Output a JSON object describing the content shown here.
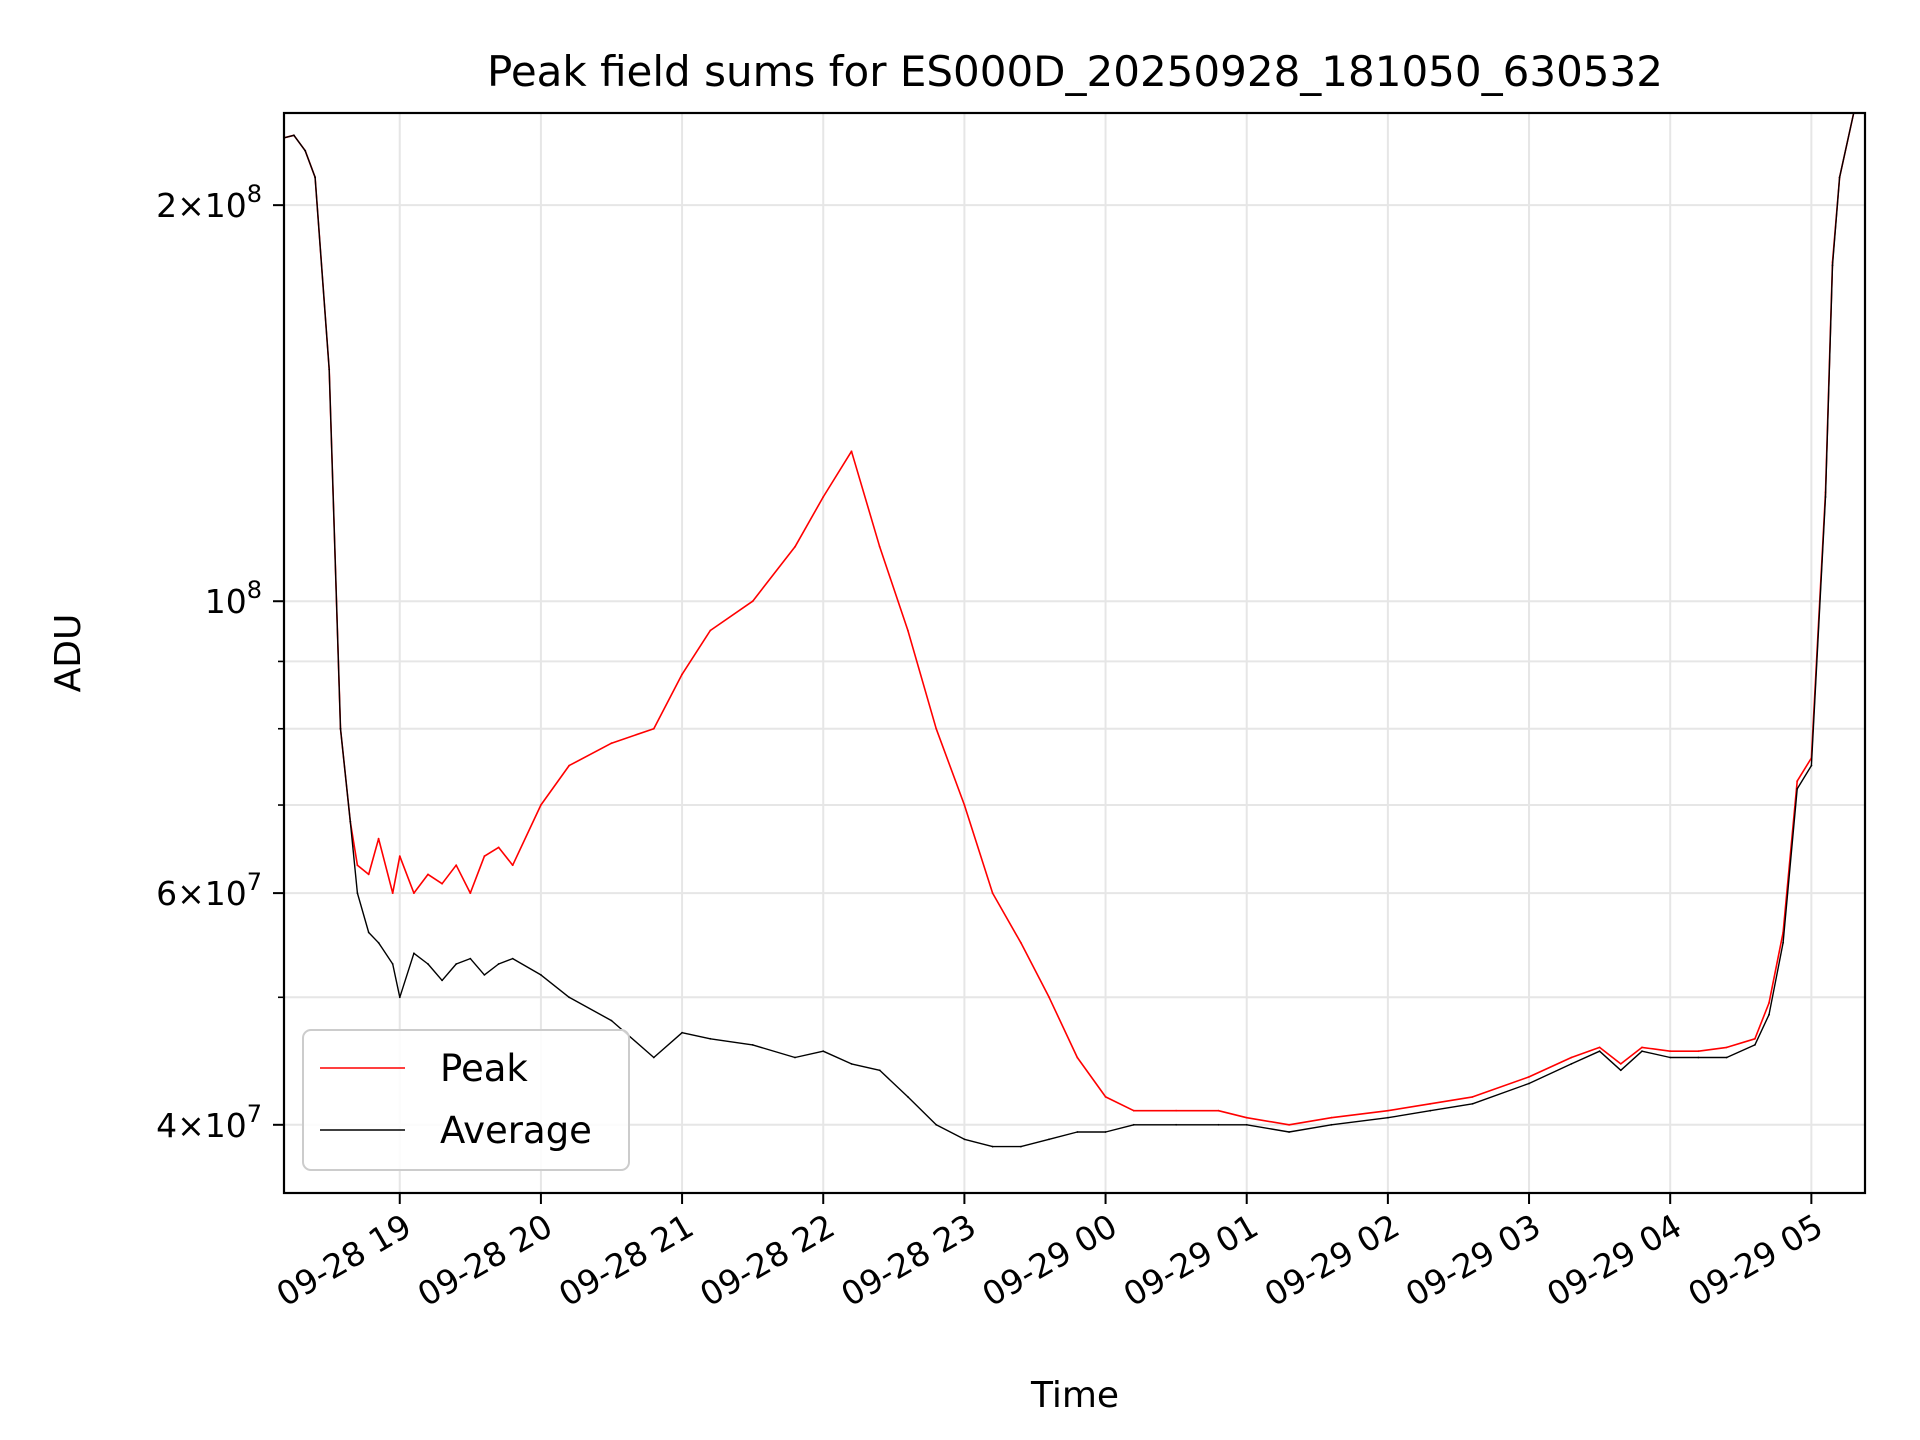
{
  "chart_data": {
    "type": "line",
    "title": "Peak field sums for ES000D_20250928_181050_630532",
    "xlabel": "Time",
    "ylabel": "ADU",
    "yscale": "log",
    "ylim": [
      35500000,
      235000000
    ],
    "xlim_hours_since_0928_18": [
      0.18,
      11.38
    ],
    "grid": true,
    "legend_position": "lower-left",
    "x_ticks": [
      {
        "label": "09-28 19",
        "hour": 1
      },
      {
        "label": "09-28 20",
        "hour": 2
      },
      {
        "label": "09-28 21",
        "hour": 3
      },
      {
        "label": "09-28 22",
        "hour": 4
      },
      {
        "label": "09-28 23",
        "hour": 5
      },
      {
        "label": "09-29 00",
        "hour": 6
      },
      {
        "label": "09-29 01",
        "hour": 7
      },
      {
        "label": "09-29 02",
        "hour": 8
      },
      {
        "label": "09-29 03",
        "hour": 9
      },
      {
        "label": "09-29 04",
        "hour": 10
      },
      {
        "label": "09-29 05",
        "hour": 11
      }
    ],
    "y_ticks": [
      {
        "base": "4",
        "exp": "7",
        "value": 40000000
      },
      {
        "base": "6",
        "exp": "7",
        "value": 60000000
      },
      {
        "base": "",
        "exp": "8",
        "value": 100000000
      },
      {
        "base": "2",
        "exp": "8",
        "value": 200000000
      }
    ],
    "y_minor": [
      50000000,
      70000000,
      80000000,
      90000000
    ],
    "series": [
      {
        "name": "Average",
        "color": "#000000",
        "x_hours": [
          0.18,
          0.25,
          0.33,
          0.4,
          0.5,
          0.58,
          0.65,
          0.7,
          0.78,
          0.85,
          0.95,
          1.0,
          1.1,
          1.2,
          1.3,
          1.4,
          1.5,
          1.6,
          1.7,
          1.8,
          2.0,
          2.2,
          2.5,
          2.8,
          3.0,
          3.2,
          3.5,
          3.8,
          4.0,
          4.2,
          4.4,
          4.6,
          4.8,
          5.0,
          5.2,
          5.4,
          5.6,
          5.8,
          6.0,
          6.2,
          6.5,
          6.8,
          7.0,
          7.3,
          7.6,
          8.0,
          8.3,
          8.6,
          9.0,
          9.3,
          9.5,
          9.65,
          9.8,
          10.0,
          10.2,
          10.4,
          10.6,
          10.7,
          10.8,
          10.9,
          11.0,
          11.1,
          11.15,
          11.2,
          11.3,
          11.38
        ],
        "values": [
          225000000,
          226000000,
          220000000,
          210000000,
          150000000,
          80000000,
          68000000,
          60000000,
          56000000,
          55000000,
          53000000,
          50000000,
          54000000,
          53000000,
          51500000,
          53000000,
          53500000,
          52000000,
          53000000,
          53500000,
          52000000,
          50000000,
          48000000,
          45000000,
          47000000,
          46500000,
          46000000,
          45000000,
          45500000,
          44500000,
          44000000,
          42000000,
          40000000,
          39000000,
          38500000,
          38500000,
          39000000,
          39500000,
          39500000,
          40000000,
          40000000,
          40000000,
          40000000,
          39500000,
          40000000,
          40500000,
          41000000,
          41500000,
          43000000,
          44500000,
          45500000,
          44000000,
          45500000,
          45000000,
          45000000,
          45000000,
          46000000,
          48500000,
          55000000,
          72000000,
          75000000,
          120000000,
          180000000,
          210000000,
          235000000,
          235000000
        ]
      },
      {
        "name": "Peak",
        "color": "#ff0000",
        "x_hours": [
          0.18,
          0.25,
          0.33,
          0.4,
          0.5,
          0.58,
          0.65,
          0.7,
          0.78,
          0.85,
          0.95,
          1.0,
          1.1,
          1.2,
          1.3,
          1.4,
          1.5,
          1.6,
          1.7,
          1.8,
          2.0,
          2.2,
          2.5,
          2.8,
          3.0,
          3.2,
          3.5,
          3.8,
          4.0,
          4.2,
          4.4,
          4.6,
          4.8,
          5.0,
          5.2,
          5.4,
          5.6,
          5.8,
          6.0,
          6.2,
          6.5,
          6.8,
          7.0,
          7.3,
          7.6,
          8.0,
          8.3,
          8.6,
          9.0,
          9.3,
          9.5,
          9.65,
          9.8,
          10.0,
          10.2,
          10.4,
          10.6,
          10.7,
          10.8,
          10.9,
          11.0,
          11.1,
          11.15,
          11.2,
          11.3,
          11.38
        ],
        "values": [
          225000000,
          226000000,
          220000000,
          210000000,
          150000000,
          80000000,
          68000000,
          63000000,
          62000000,
          66000000,
          60000000,
          64000000,
          60000000,
          62000000,
          61000000,
          63000000,
          60000000,
          64000000,
          65000000,
          63000000,
          70000000,
          75000000,
          78000000,
          80000000,
          88000000,
          95000000,
          100000000,
          110000000,
          120000000,
          130000000,
          110000000,
          95000000,
          80000000,
          70000000,
          60000000,
          55000000,
          50000000,
          45000000,
          42000000,
          41000000,
          41000000,
          41000000,
          40500000,
          40000000,
          40500000,
          41000000,
          41500000,
          42000000,
          43500000,
          45000000,
          45800000,
          44500000,
          45800000,
          45500000,
          45500000,
          45800000,
          46500000,
          49500000,
          56000000,
          73000000,
          76000000,
          121000000,
          181000000,
          210000000,
          235000000,
          235000000
        ]
      }
    ]
  }
}
